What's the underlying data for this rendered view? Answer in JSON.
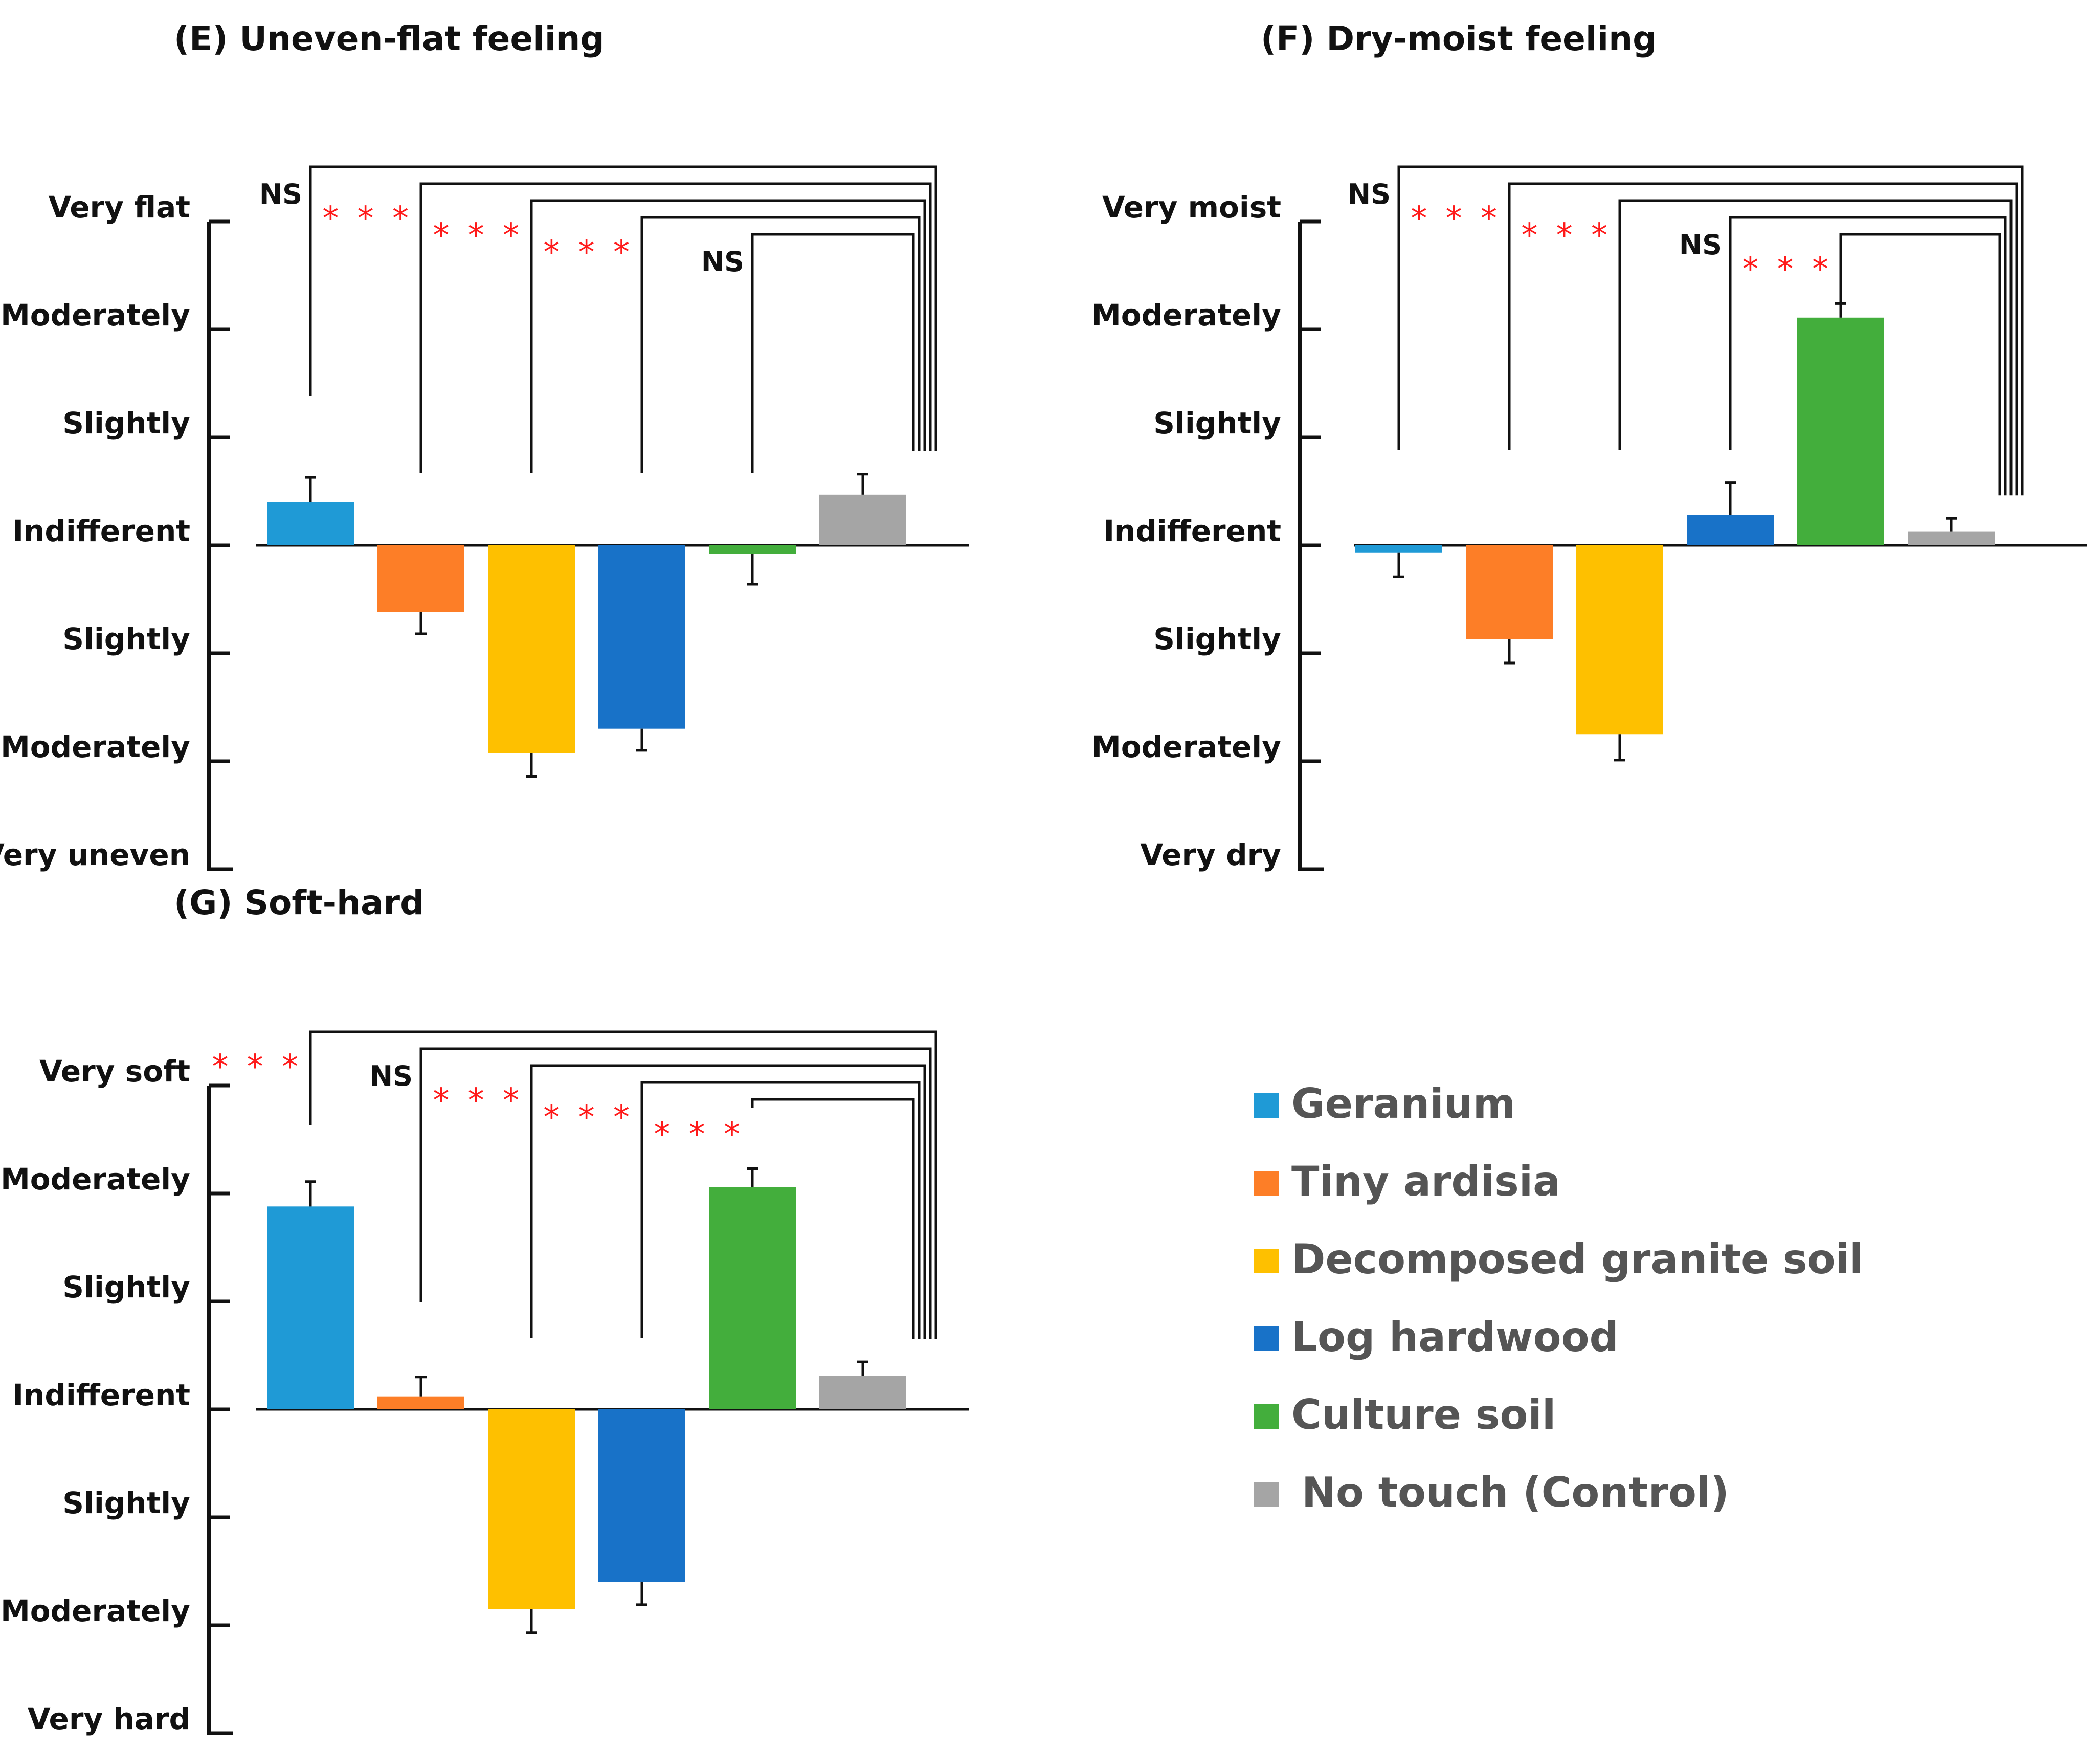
{
  "legend": [
    {
      "label": "Geranium",
      "color": "#1f9ad6"
    },
    {
      "label": "Tiny ardisia",
      "color": "#fd7e27"
    },
    {
      "label": "Decomposed granite soil",
      "color": "#fec000"
    },
    {
      "label": "Log hardwood",
      "color": "#1872c8"
    },
    {
      "label": "Culture soil",
      "color": "#43ae3c"
    },
    {
      "label": "No touch (Control)",
      "color": "#a5a5a5"
    }
  ],
  "chart_data": [
    {
      "type": "bar",
      "title": "(E) Uneven-flat feeling",
      "categories": [
        "Geranium",
        "Tiny ardisia",
        "Decomposed granite soil",
        "Log hardwood",
        "Culture soil",
        "No touch (Control)"
      ],
      "values": [
        0.4,
        -0.62,
        -1.92,
        -1.7,
        -0.08,
        0.47
      ],
      "errors": [
        0.23,
        0.2,
        0.22,
        0.2,
        0.28,
        0.19
      ],
      "ylim": [
        -3,
        3
      ],
      "yticks": [
        "Very uneven",
        "Moderately",
        "Slightly",
        "Indifferent",
        "Slightly",
        "Moderately",
        "Very flat"
      ],
      "significance": [
        {
          "bar": 0,
          "label": "NS"
        },
        {
          "bar": 1,
          "label": "***"
        },
        {
          "bar": 2,
          "label": "***"
        },
        {
          "bar": 3,
          "label": "***"
        },
        {
          "bar": 4,
          "label": "NS"
        }
      ]
    },
    {
      "type": "bar",
      "title": "(F) Dry-moist feeling",
      "categories": [
        "Geranium",
        "Tiny ardisia",
        "Decomposed granite soil",
        "Log hardwood",
        "Culture soil",
        "No touch (Control)"
      ],
      "values": [
        -0.07,
        -0.87,
        -1.75,
        0.28,
        2.11,
        0.13
      ],
      "errors": [
        0.22,
        0.22,
        0.24,
        0.3,
        0.13,
        0.12
      ],
      "ylim": [
        -3,
        3
      ],
      "yticks": [
        "Very dry",
        "Moderately",
        "Slightly",
        "Indifferent",
        "Slightly",
        "Moderately",
        "Very moist"
      ],
      "significance": [
        {
          "bar": 0,
          "label": "NS"
        },
        {
          "bar": 1,
          "label": "***"
        },
        {
          "bar": 2,
          "label": "***"
        },
        {
          "bar": 3,
          "label": "NS"
        },
        {
          "bar": 4,
          "label": "***"
        }
      ]
    },
    {
      "type": "bar",
      "title": "(G) Soft-hard",
      "categories": [
        "Geranium",
        "Tiny ardisia",
        "Decomposed granite soil",
        "Log hardwood",
        "Culture soil",
        "No touch (Control)"
      ],
      "values": [
        1.88,
        0.12,
        -1.85,
        -1.6,
        2.06,
        0.31
      ],
      "errors": [
        0.23,
        0.18,
        0.22,
        0.21,
        0.17,
        0.13
      ],
      "ylim": [
        -3,
        3
      ],
      "yticks": [
        "Very hard",
        "Moderately",
        "Slightly",
        "Indifferent",
        "Slightly",
        "Moderately",
        "Very soft"
      ],
      "significance": [
        {
          "bar": 0,
          "label": "***"
        },
        {
          "bar": 1,
          "label": "NS"
        },
        {
          "bar": 2,
          "label": "***"
        },
        {
          "bar": 3,
          "label": "***"
        },
        {
          "bar": 4,
          "label": "***"
        }
      ]
    }
  ]
}
